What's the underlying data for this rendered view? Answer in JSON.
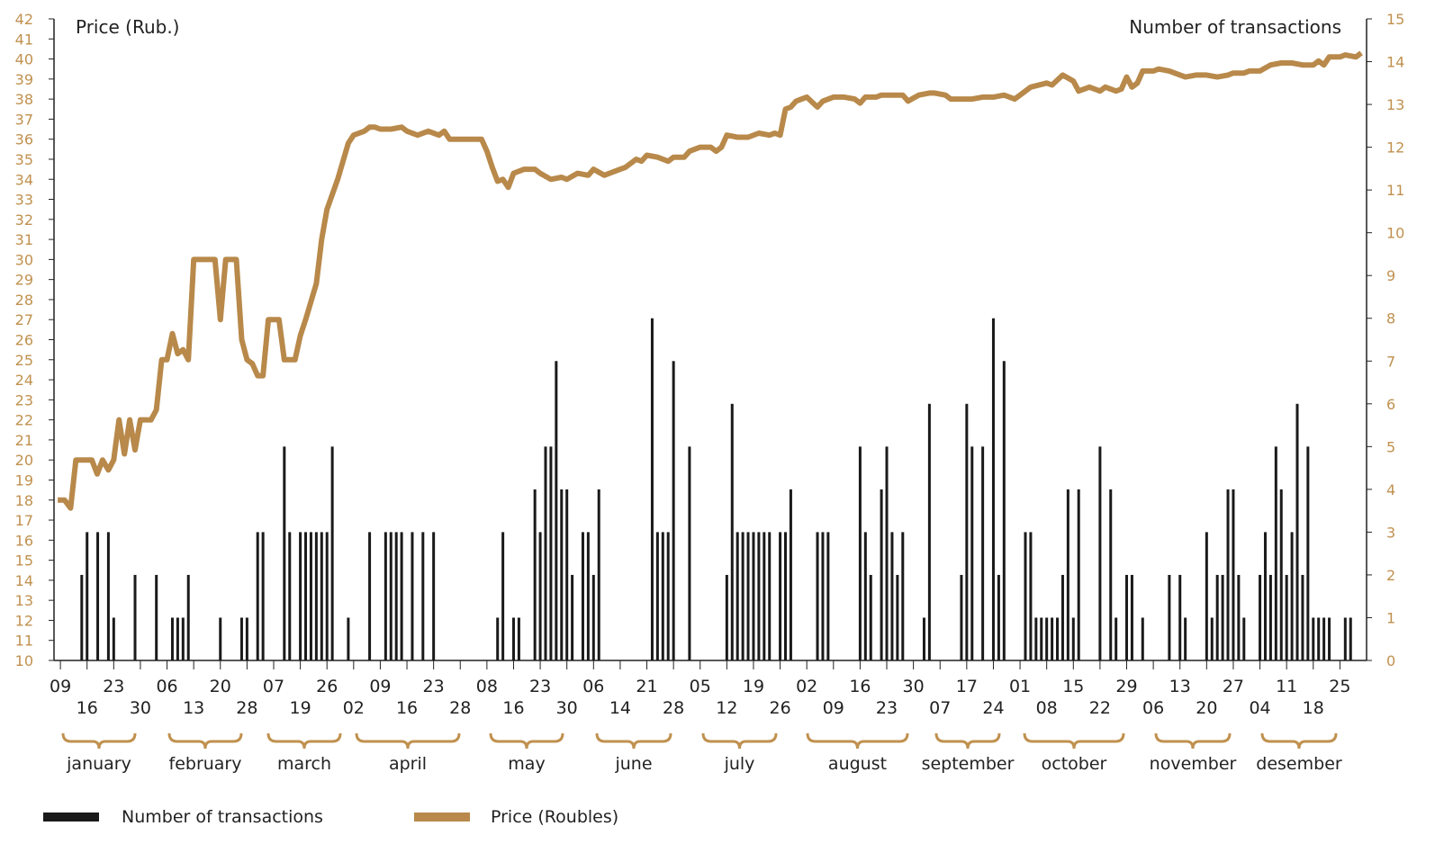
{
  "chart_data": {
    "type": "combo",
    "y_label": "Price (Rub.)",
    "y2_label": "Number of transactions",
    "xlim": [
      -1.2,
      245
    ],
    "xticks": [
      {
        "value": 0,
        "label": "09"
      },
      {
        "value": 5,
        "label": "16"
      },
      {
        "value": 10,
        "label": "23"
      },
      {
        "value": 15,
        "label": "30"
      },
      {
        "value": 20,
        "label": "06"
      },
      {
        "value": 25,
        "label": "13"
      },
      {
        "value": 30,
        "label": "20"
      },
      {
        "value": 35,
        "label": "28"
      },
      {
        "value": 40,
        "label": "07"
      },
      {
        "value": 45,
        "label": "19"
      },
      {
        "value": 50,
        "label": "26"
      },
      {
        "value": 55,
        "label": "02"
      },
      {
        "value": 60,
        "label": "09"
      },
      {
        "value": 65,
        "label": "16"
      },
      {
        "value": 70,
        "label": "23"
      },
      {
        "value": 75,
        "label": "28"
      },
      {
        "value": 80,
        "label": "08"
      },
      {
        "value": 85,
        "label": "16"
      },
      {
        "value": 90,
        "label": "23"
      },
      {
        "value": 95,
        "label": "30"
      },
      {
        "value": 100,
        "label": "06"
      },
      {
        "value": 105,
        "label": "14"
      },
      {
        "value": 110,
        "label": "21"
      },
      {
        "value": 115,
        "label": "28"
      },
      {
        "value": 120,
        "label": "05"
      },
      {
        "value": 125,
        "label": "12"
      },
      {
        "value": 130,
        "label": "19"
      },
      {
        "value": 135,
        "label": "26"
      },
      {
        "value": 140,
        "label": "02"
      },
      {
        "value": 145,
        "label": "09"
      },
      {
        "value": 150,
        "label": "16"
      },
      {
        "value": 155,
        "label": "23"
      },
      {
        "value": 160,
        "label": "30"
      },
      {
        "value": 165,
        "label": "07"
      },
      {
        "value": 170,
        "label": "17"
      },
      {
        "value": 175,
        "label": "24"
      },
      {
        "value": 180,
        "label": "01"
      },
      {
        "value": 185,
        "label": "08"
      },
      {
        "value": 190,
        "label": "15"
      },
      {
        "value": 195,
        "label": "22"
      },
      {
        "value": 200,
        "label": "29"
      },
      {
        "value": 205,
        "label": "06"
      },
      {
        "value": 210,
        "label": "13"
      },
      {
        "value": 215,
        "label": "20"
      },
      {
        "value": 220,
        "label": "27"
      },
      {
        "value": 225,
        "label": "04"
      },
      {
        "value": 230,
        "label": "11"
      },
      {
        "value": 235,
        "label": "18"
      },
      {
        "value": 240,
        "label": "25"
      }
    ],
    "months": [
      "january",
      "february",
      "march",
      "april",
      "may",
      "june",
      "july",
      "august",
      "september",
      "october",
      "november",
      "desember"
    ],
    "ylim": [
      10,
      42
    ],
    "yticks": [
      10,
      11,
      12,
      13,
      14,
      15,
      16,
      17,
      18,
      19,
      20,
      21,
      22,
      23,
      24,
      25,
      26,
      27,
      28,
      29,
      30,
      31,
      32,
      33,
      34,
      35,
      36,
      37,
      38,
      39,
      40,
      41,
      42
    ],
    "y2lim": [
      0,
      15
    ],
    "y2ticks": [
      0,
      1,
      2,
      3,
      4,
      5,
      6,
      7,
      8,
      9,
      10,
      11,
      12,
      13,
      14,
      15
    ],
    "tick_color": "#c0914f",
    "series": [
      {
        "name": "Number of transactions",
        "type": "bar",
        "axis": "y2",
        "color": "#1a1a1a",
        "x": [
          4,
          5,
          7,
          9,
          10,
          14,
          18,
          21,
          22,
          23,
          24,
          30,
          34,
          35,
          37,
          38,
          42,
          43,
          45,
          46,
          47,
          48,
          49,
          50,
          51,
          54,
          58,
          61,
          62,
          63,
          64,
          66,
          68,
          70,
          82,
          83,
          85,
          86,
          89,
          90,
          91,
          92,
          93,
          94,
          95,
          96,
          98,
          99,
          100,
          101,
          111,
          112,
          113,
          114,
          115,
          118,
          125,
          126,
          127,
          128,
          129,
          130,
          131,
          132,
          133,
          135,
          136,
          137,
          142,
          143,
          144,
          150,
          151,
          152,
          154,
          155,
          156,
          157,
          158,
          162,
          163,
          169,
          170,
          171,
          173,
          175,
          176,
          177,
          181,
          182,
          183,
          184,
          185,
          186,
          187,
          188,
          189,
          190,
          191,
          195,
          197,
          198,
          200,
          201,
          203,
          208,
          210,
          211,
          215,
          216,
          217,
          218,
          219,
          220,
          221,
          222,
          225,
          226,
          227,
          228,
          229,
          230,
          231,
          232,
          233,
          234,
          235,
          236,
          237,
          238,
          241,
          242
        ],
        "values": [
          2,
          3,
          3,
          3,
          1,
          2,
          2,
          1,
          1,
          1,
          2,
          1,
          1,
          1,
          3,
          3,
          5,
          3,
          3,
          3,
          3,
          3,
          3,
          3,
          5,
          1,
          3,
          3,
          3,
          3,
          3,
          3,
          3,
          3,
          1,
          3,
          1,
          1,
          4,
          3,
          5,
          5,
          7,
          4,
          4,
          2,
          3,
          3,
          2,
          4,
          8,
          3,
          3,
          3,
          7,
          5,
          2,
          6,
          3,
          3,
          3,
          3,
          3,
          3,
          3,
          3,
          3,
          4,
          3,
          3,
          3,
          5,
          3,
          2,
          4,
          5,
          3,
          2,
          3,
          1,
          6,
          2,
          6,
          5,
          5,
          8,
          2,
          7,
          3,
          3,
          1,
          1,
          1,
          1,
          1,
          2,
          4,
          1,
          4,
          5,
          4,
          1,
          2,
          2,
          1,
          2,
          2,
          1,
          3,
          1,
          2,
          2,
          4,
          4,
          2,
          1,
          2,
          3,
          2,
          5,
          4,
          2,
          3,
          6,
          2,
          5,
          1,
          1,
          1,
          1,
          1,
          1
        ]
      },
      {
        "name": "Price (Roubles)",
        "type": "line",
        "axis": "y",
        "color": "#b8894a",
        "x": [
          -0.5,
          0.8,
          1.9,
          2.9,
          5.9,
          6.9,
          7.9,
          9,
          10,
          11,
          12,
          13,
          14,
          15,
          17,
          18,
          19,
          20,
          21,
          22,
          23,
          24,
          25,
          29,
          30,
          31,
          33,
          34,
          35,
          36,
          37,
          38,
          39,
          41,
          42,
          44,
          45,
          46,
          48,
          49,
          50,
          52,
          54,
          55,
          57,
          58,
          59,
          60,
          62,
          64,
          65,
          67,
          69,
          71,
          72,
          73,
          75,
          77,
          79,
          80,
          81,
          82,
          83,
          84,
          85,
          87,
          89,
          90,
          92,
          94,
          95,
          97,
          99,
          100,
          102,
          104,
          106,
          108,
          109,
          110,
          112,
          114,
          115,
          117,
          118,
          120,
          122,
          123,
          124,
          125,
          127,
          129,
          131,
          133,
          134,
          135,
          136,
          137,
          138,
          140,
          142,
          143,
          145,
          147,
          149,
          150,
          151,
          153,
          154,
          156,
          158,
          159,
          161,
          163,
          164,
          166,
          167,
          169,
          171,
          173,
          175,
          177,
          179,
          180,
          182,
          185,
          186,
          188,
          190,
          191,
          193,
          195,
          196,
          198,
          199,
          200,
          201,
          202,
          203,
          205,
          206,
          208,
          209,
          211,
          213,
          215,
          217,
          219,
          220,
          222,
          223,
          225,
          227,
          229,
          231,
          233,
          235,
          236,
          237,
          238,
          240,
          241,
          243,
          244
        ],
        "values": [
          18,
          18,
          17.6,
          20,
          20,
          19.3,
          20,
          19.5,
          20,
          22,
          20.3,
          22,
          20.5,
          22,
          22,
          22.5,
          25,
          25,
          26.3,
          25.3,
          25.5,
          25,
          30,
          30,
          27,
          30,
          30,
          26,
          25,
          24.8,
          24.2,
          24.2,
          27,
          27,
          25,
          25,
          26.2,
          27,
          28.8,
          31,
          32.5,
          34,
          35.8,
          36.2,
          36.4,
          36.6,
          36.6,
          36.5,
          36.5,
          36.6,
          36.4,
          36.2,
          36.4,
          36.2,
          36.4,
          36,
          36,
          36,
          36,
          35.4,
          34.6,
          33.9,
          34,
          33.6,
          34.3,
          34.5,
          34.5,
          34.3,
          34,
          34.1,
          34,
          34.3,
          34.2,
          34.5,
          34.2,
          34.4,
          34.6,
          35,
          34.9,
          35.2,
          35.1,
          34.9,
          35.1,
          35.1,
          35.4,
          35.6,
          35.6,
          35.4,
          35.6,
          36.2,
          36.1,
          36.1,
          36.3,
          36.2,
          36.3,
          36.2,
          37.5,
          37.6,
          37.9,
          38.1,
          37.6,
          37.9,
          38.1,
          38.1,
          38,
          37.8,
          38.1,
          38.1,
          38.2,
          38.2,
          38.2,
          37.9,
          38.2,
          38.3,
          38.3,
          38.2,
          38,
          38,
          38,
          38.1,
          38.1,
          38.2,
          38,
          38.2,
          38.6,
          38.8,
          38.7,
          39.2,
          38.9,
          38.4,
          38.6,
          38.4,
          38.6,
          38.4,
          38.5,
          39.1,
          38.6,
          38.8,
          39.4,
          39.4,
          39.5,
          39.4,
          39.3,
          39.1,
          39.2,
          39.2,
          39.1,
          39.2,
          39.3,
          39.3,
          39.4,
          39.4,
          39.7,
          39.8,
          39.8,
          39.7,
          39.7,
          39.9,
          39.7,
          40.1,
          40.1,
          40.2,
          40.1,
          40.3
        ]
      }
    ]
  }
}
